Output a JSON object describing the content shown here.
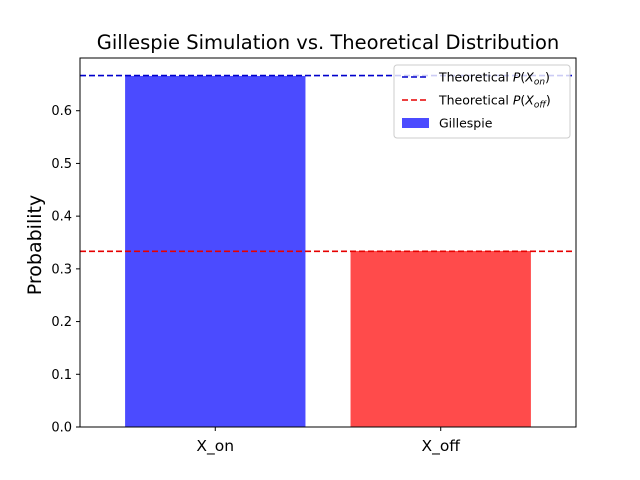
{
  "chart_data": {
    "type": "bar",
    "title": "Gillespie Simulation vs. Theoretical Distribution",
    "xlabel": "",
    "ylabel": "Probability",
    "categories": [
      "X_on",
      "X_off"
    ],
    "series": [
      {
        "name": "Gillespie",
        "values": [
          0.666,
          0.334
        ]
      }
    ],
    "bar_colors": [
      "#4b4bff",
      "#ff4b4b"
    ],
    "reference_lines": [
      {
        "label": "Theoretical P(X_on)",
        "value": 0.6667,
        "color": "#0000cc",
        "style": "dashed"
      },
      {
        "label": "Theoretical P(X_off)",
        "value": 0.3333,
        "color": "#e60000",
        "style": "dashed"
      }
    ],
    "ylim": [
      0,
      0.7
    ],
    "yticks": [
      0.0,
      0.1,
      0.2,
      0.3,
      0.4,
      0.5,
      0.6
    ],
    "ytick_labels": [
      "0.0",
      "0.1",
      "0.2",
      "0.3",
      "0.4",
      "0.5",
      "0.6"
    ],
    "grid": false,
    "legend_position": "top-right",
    "legend": [
      {
        "kind": "line",
        "base": "Theoretical ",
        "sub": "on",
        "color": "#0000cc"
      },
      {
        "kind": "line",
        "base": "Theoretical ",
        "sub": "off",
        "color": "#e60000"
      },
      {
        "kind": "patch",
        "text": "Gillespie",
        "color": "#4b4bff"
      }
    ]
  }
}
